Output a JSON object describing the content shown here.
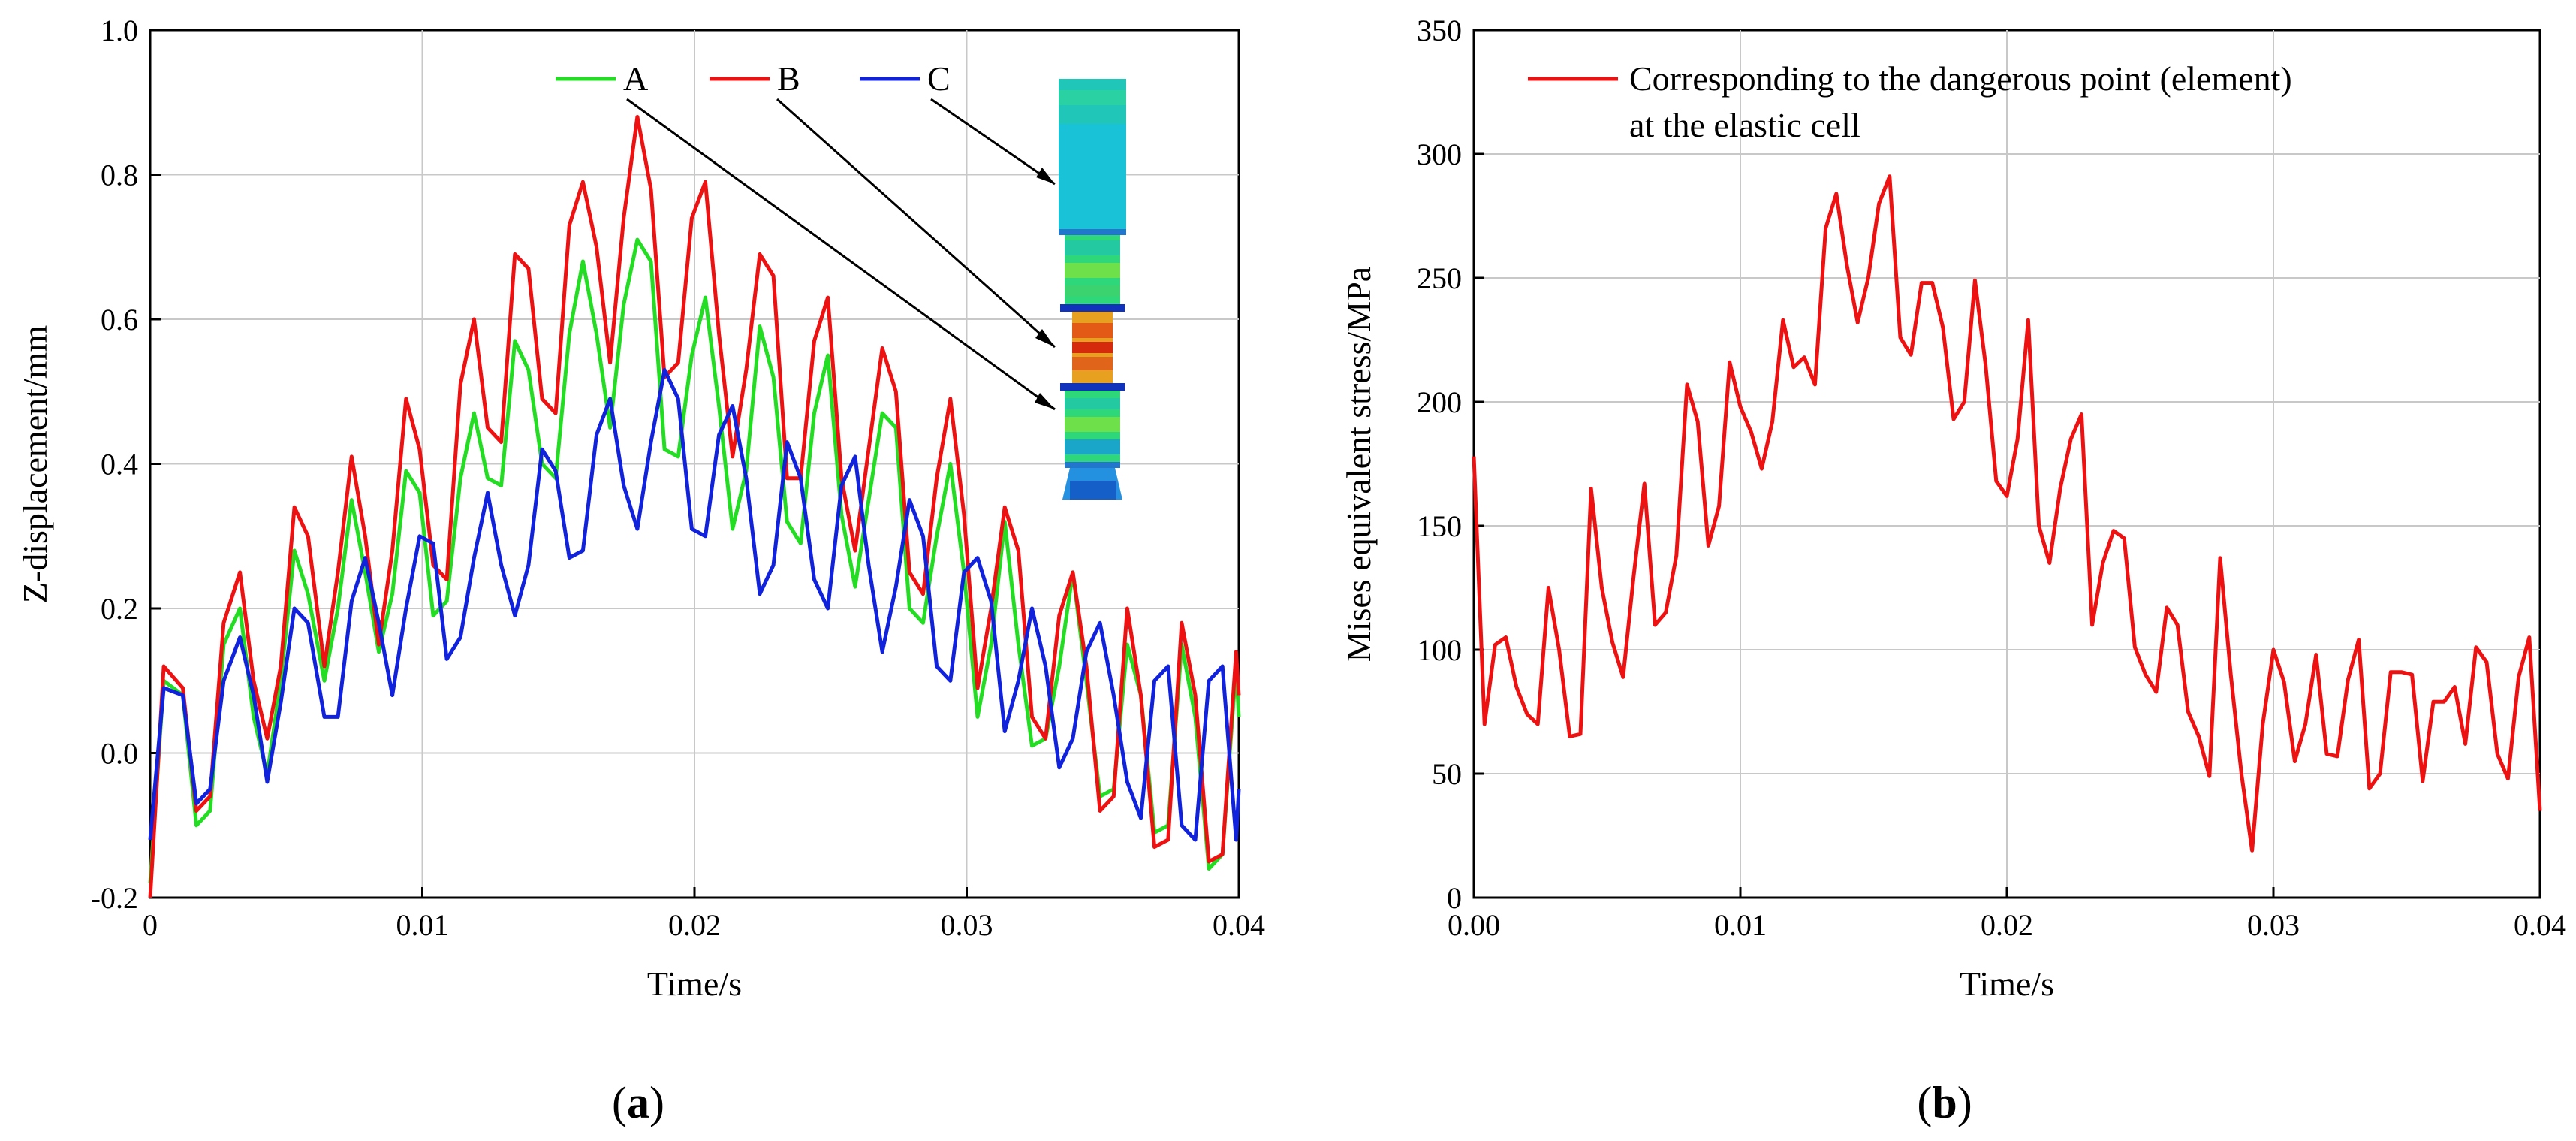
{
  "chart_data": [
    {
      "panel": "(a)",
      "type": "line",
      "xlabel": "Time/s",
      "ylabel": "Z-displacement/mm",
      "xlim": [
        0,
        0.04
      ],
      "ylim": [
        -0.2,
        1.0
      ],
      "xticks": [
        0,
        0.01,
        0.02,
        0.03,
        0.04
      ],
      "xtick_labels": [
        "0",
        "0.01",
        "0.02",
        "0.03",
        "0.04"
      ],
      "yticks": [
        -0.2,
        0.0,
        0.2,
        0.4,
        0.6,
        0.8,
        1.0
      ],
      "ytick_labels": [
        "-0.2",
        "0.0",
        "0.2",
        "0.4",
        "0.6",
        "0.8",
        "1.0"
      ],
      "grid": true,
      "legend_position": "top-right",
      "inset": "finite element model with arrows from legend to locations A, B, C",
      "series": [
        {
          "name": "A",
          "color": "#22dd22",
          "x": [
            0,
            0.0005,
            0.0012,
            0.0017,
            0.0022,
            0.0027,
            0.0033,
            0.0038,
            0.0043,
            0.0048,
            0.0053,
            0.0058,
            0.0064,
            0.0069,
            0.0074,
            0.0079,
            0.0084,
            0.0089,
            0.0094,
            0.0099,
            0.0104,
            0.0109,
            0.0114,
            0.0119,
            0.0124,
            0.0129,
            0.0134,
            0.0139,
            0.0144,
            0.0149,
            0.0154,
            0.0159,
            0.0164,
            0.0169,
            0.0174,
            0.0179,
            0.0184,
            0.0189,
            0.0194,
            0.0199,
            0.0204,
            0.0209,
            0.0214,
            0.0219,
            0.0224,
            0.0229,
            0.0234,
            0.0239,
            0.0244,
            0.0249,
            0.0254,
            0.0259,
            0.0264,
            0.0269,
            0.0274,
            0.0279,
            0.0284,
            0.0289,
            0.0294,
            0.0299,
            0.0304,
            0.0309,
            0.0314,
            0.0319,
            0.0324,
            0.0329,
            0.0334,
            0.0339,
            0.0344,
            0.0349,
            0.0354,
            0.0359,
            0.0364,
            0.0369,
            0.0374,
            0.0379,
            0.0384,
            0.0389,
            0.0394,
            0.0399,
            0.04
          ],
          "values": [
            -0.18,
            0.1,
            0.08,
            -0.1,
            -0.08,
            0.15,
            0.2,
            0.05,
            -0.03,
            0.1,
            0.28,
            0.22,
            0.1,
            0.2,
            0.35,
            0.25,
            0.14,
            0.22,
            0.39,
            0.36,
            0.19,
            0.21,
            0.38,
            0.47,
            0.38,
            0.37,
            0.57,
            0.53,
            0.4,
            0.38,
            0.58,
            0.68,
            0.58,
            0.45,
            0.62,
            0.71,
            0.68,
            0.42,
            0.41,
            0.55,
            0.63,
            0.48,
            0.31,
            0.39,
            0.59,
            0.52,
            0.32,
            0.29,
            0.47,
            0.55,
            0.33,
            0.23,
            0.35,
            0.47,
            0.45,
            0.2,
            0.18,
            0.3,
            0.4,
            0.25,
            0.05,
            0.15,
            0.32,
            0.15,
            0.01,
            0.02,
            0.12,
            0.25,
            0.1,
            -0.06,
            -0.05,
            0.15,
            0.08,
            -0.11,
            -0.1,
            0.15,
            0.05,
            -0.16,
            -0.14,
            0.12,
            0.05
          ]
        },
        {
          "name": "B",
          "color": "#ee1111",
          "x": [
            0,
            0.0005,
            0.0012,
            0.0017,
            0.0022,
            0.0027,
            0.0033,
            0.0038,
            0.0043,
            0.0048,
            0.0053,
            0.0058,
            0.0064,
            0.0069,
            0.0074,
            0.0079,
            0.0084,
            0.0089,
            0.0094,
            0.0099,
            0.0104,
            0.0109,
            0.0114,
            0.0119,
            0.0124,
            0.0129,
            0.0134,
            0.0139,
            0.0144,
            0.0149,
            0.0154,
            0.0159,
            0.0164,
            0.0169,
            0.0174,
            0.0179,
            0.0184,
            0.0189,
            0.0194,
            0.0199,
            0.0204,
            0.0209,
            0.0214,
            0.0219,
            0.0224,
            0.0229,
            0.0234,
            0.0239,
            0.0244,
            0.0249,
            0.0254,
            0.0259,
            0.0264,
            0.0269,
            0.0274,
            0.0279,
            0.0284,
            0.0289,
            0.0294,
            0.0299,
            0.0304,
            0.0309,
            0.0314,
            0.0319,
            0.0324,
            0.0329,
            0.0334,
            0.0339,
            0.0344,
            0.0349,
            0.0354,
            0.0359,
            0.0364,
            0.0369,
            0.0374,
            0.0379,
            0.0384,
            0.0389,
            0.0394,
            0.0399,
            0.04
          ],
          "values": [
            -0.2,
            0.12,
            0.09,
            -0.08,
            -0.06,
            0.18,
            0.25,
            0.1,
            0.02,
            0.12,
            0.34,
            0.3,
            0.12,
            0.25,
            0.41,
            0.3,
            0.15,
            0.28,
            0.49,
            0.42,
            0.26,
            0.24,
            0.51,
            0.6,
            0.45,
            0.43,
            0.69,
            0.67,
            0.49,
            0.47,
            0.73,
            0.79,
            0.7,
            0.54,
            0.74,
            0.88,
            0.78,
            0.52,
            0.54,
            0.74,
            0.79,
            0.58,
            0.41,
            0.53,
            0.69,
            0.66,
            0.38,
            0.38,
            0.57,
            0.63,
            0.38,
            0.28,
            0.42,
            0.56,
            0.5,
            0.25,
            0.22,
            0.38,
            0.49,
            0.33,
            0.09,
            0.2,
            0.34,
            0.28,
            0.05,
            0.02,
            0.19,
            0.25,
            0.12,
            -0.08,
            -0.06,
            0.2,
            0.08,
            -0.13,
            -0.12,
            0.18,
            0.08,
            -0.15,
            -0.14,
            0.14,
            0.08
          ]
        },
        {
          "name": "C",
          "color": "#1122dd",
          "x": [
            0,
            0.0005,
            0.0012,
            0.0017,
            0.0022,
            0.0027,
            0.0033,
            0.0038,
            0.0043,
            0.0048,
            0.0053,
            0.0058,
            0.0064,
            0.0069,
            0.0074,
            0.0079,
            0.0084,
            0.0089,
            0.0094,
            0.0099,
            0.0104,
            0.0109,
            0.0114,
            0.0119,
            0.0124,
            0.0129,
            0.0134,
            0.0139,
            0.0144,
            0.0149,
            0.0154,
            0.0159,
            0.0164,
            0.0169,
            0.0174,
            0.0179,
            0.0184,
            0.0189,
            0.0194,
            0.0199,
            0.0204,
            0.0209,
            0.0214,
            0.0219,
            0.0224,
            0.0229,
            0.0234,
            0.0239,
            0.0244,
            0.0249,
            0.0254,
            0.0259,
            0.0264,
            0.0269,
            0.0274,
            0.0279,
            0.0284,
            0.0289,
            0.0294,
            0.0299,
            0.0304,
            0.0309,
            0.0314,
            0.0319,
            0.0324,
            0.0329,
            0.0334,
            0.0339,
            0.0344,
            0.0349,
            0.0354,
            0.0359,
            0.0364,
            0.0369,
            0.0374,
            0.0379,
            0.0384,
            0.0389,
            0.0394,
            0.0399,
            0.04
          ],
          "values": [
            -0.12,
            0.09,
            0.08,
            -0.07,
            -0.05,
            0.1,
            0.16,
            0.08,
            -0.04,
            0.07,
            0.2,
            0.18,
            0.05,
            0.05,
            0.21,
            0.27,
            0.18,
            0.08,
            0.2,
            0.3,
            0.29,
            0.13,
            0.16,
            0.27,
            0.36,
            0.26,
            0.19,
            0.26,
            0.42,
            0.39,
            0.27,
            0.28,
            0.44,
            0.49,
            0.37,
            0.31,
            0.43,
            0.53,
            0.49,
            0.31,
            0.3,
            0.44,
            0.48,
            0.38,
            0.22,
            0.26,
            0.43,
            0.38,
            0.24,
            0.2,
            0.37,
            0.41,
            0.26,
            0.14,
            0.23,
            0.35,
            0.3,
            0.12,
            0.1,
            0.25,
            0.27,
            0.21,
            0.03,
            0.1,
            0.2,
            0.12,
            -0.02,
            0.02,
            0.14,
            0.18,
            0.08,
            -0.04,
            -0.09,
            0.1,
            0.12,
            -0.1,
            -0.12,
            0.1,
            0.12,
            -0.12,
            -0.05
          ]
        }
      ]
    },
    {
      "panel": "(b)",
      "type": "line",
      "xlabel": "Time/s",
      "ylabel": "Mises equivalent stress/MPa",
      "xlim": [
        0,
        0.04
      ],
      "ylim": [
        0,
        350
      ],
      "xticks": [
        0,
        0.01,
        0.02,
        0.03,
        0.04
      ],
      "xtick_labels": [
        "0.00",
        "0.01",
        "0.02",
        "0.03",
        "0.04"
      ],
      "yticks": [
        0,
        50,
        100,
        150,
        200,
        250,
        300,
        350
      ],
      "ytick_labels": [
        "0",
        "50",
        "100",
        "150",
        "200",
        "250",
        "300",
        "350"
      ],
      "grid": true,
      "legend_position": "top-left",
      "series": [
        {
          "name": "Corresponding to the dangerous point (element) at the elastic cell",
          "legend_lines": [
            "Corresponding to the dangerous point (element)",
            "at the elastic cell"
          ],
          "color": "#ee1111",
          "x": [
            0,
            0.0004,
            0.0008,
            0.0012,
            0.0016,
            0.002,
            0.0024,
            0.0028,
            0.0032,
            0.0036,
            0.004,
            0.0044,
            0.0048,
            0.0052,
            0.0056,
            0.006,
            0.0064,
            0.0068,
            0.0072,
            0.0076,
            0.008,
            0.0084,
            0.0088,
            0.0092,
            0.0096,
            0.01,
            0.0104,
            0.0108,
            0.0112,
            0.0116,
            0.012,
            0.0124,
            0.0128,
            0.0132,
            0.0136,
            0.014,
            0.0144,
            0.0148,
            0.0152,
            0.0156,
            0.016,
            0.0164,
            0.0168,
            0.0172,
            0.0176,
            0.018,
            0.0184,
            0.0188,
            0.0192,
            0.0196,
            0.02,
            0.0204,
            0.0208,
            0.0212,
            0.0216,
            0.022,
            0.0224,
            0.0228,
            0.0232,
            0.0236,
            0.024,
            0.0244,
            0.0248,
            0.0252,
            0.0256,
            0.026,
            0.0264,
            0.0268,
            0.0272,
            0.0276,
            0.028,
            0.0284,
            0.0288,
            0.0292,
            0.0296,
            0.03,
            0.0304,
            0.0308,
            0.0312,
            0.0316,
            0.032,
            0.0324,
            0.0328,
            0.0332,
            0.0336,
            0.034,
            0.0344,
            0.0348,
            0.0352,
            0.0356,
            0.036,
            0.0364,
            0.0368,
            0.0372,
            0.0376,
            0.038,
            0.0384,
            0.0388,
            0.0392,
            0.0396,
            0.04
          ],
          "values": [
            178,
            70,
            102,
            105,
            85,
            74,
            70,
            125,
            100,
            65,
            66,
            165,
            125,
            103,
            89,
            130,
            167,
            110,
            115,
            138,
            207,
            192,
            142,
            158,
            216,
            198,
            188,
            173,
            192,
            233,
            214,
            218,
            207,
            270,
            284,
            255,
            232,
            250,
            280,
            291,
            226,
            219,
            248,
            248,
            230,
            193,
            200,
            249,
            215,
            168,
            162,
            185,
            233,
            150,
            135,
            165,
            185,
            195,
            110,
            135,
            148,
            145,
            101,
            90,
            83,
            117,
            110,
            75,
            65,
            49,
            137,
            90,
            50,
            19,
            70,
            100,
            87,
            55,
            70,
            98,
            58,
            57,
            88,
            104,
            44,
            50,
            91,
            91,
            90,
            47,
            79,
            79,
            85,
            62,
            101,
            95,
            58,
            48,
            89,
            105,
            35
          ]
        }
      ]
    }
  ]
}
